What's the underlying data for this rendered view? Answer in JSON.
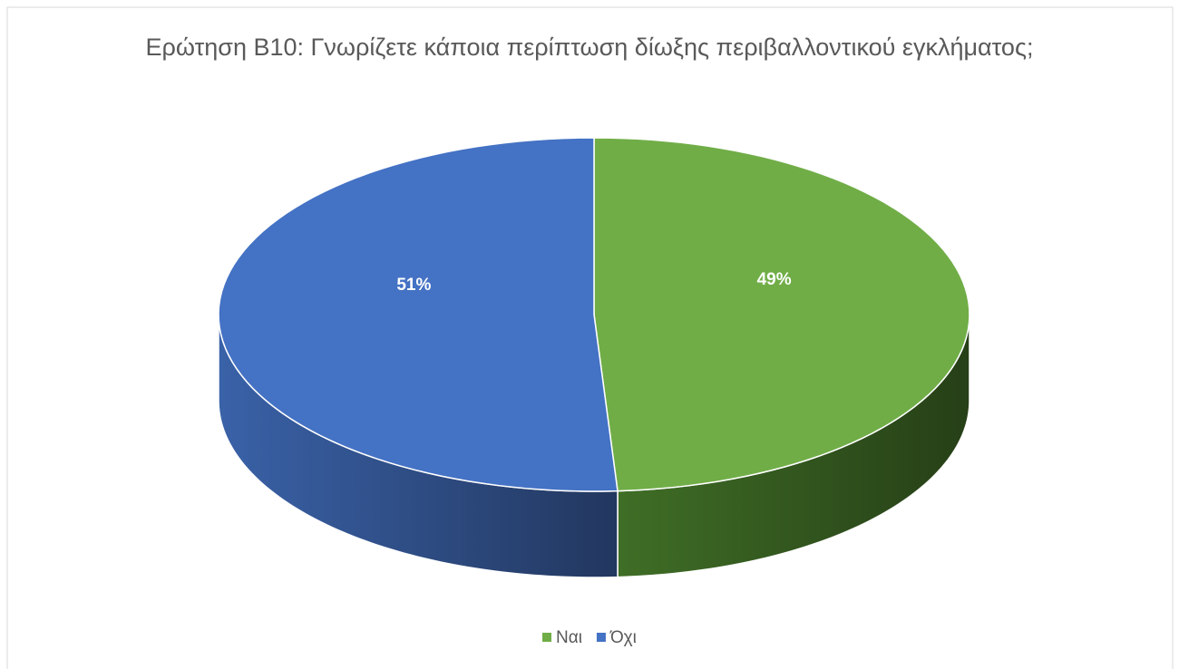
{
  "chart_data": {
    "type": "pie",
    "title": "Ερώτηση Β10: Γνωρίζετε κάποια περίπτωση δίωξης περιβαλλοντικού εγκλήματος;",
    "categories": [
      "Ναι",
      "Όχι"
    ],
    "values": [
      49,
      51
    ],
    "value_labels": [
      "49%",
      "51%"
    ],
    "colors": [
      "#70ad47",
      "#4472c4"
    ],
    "legend": "bottom",
    "three_d": true
  }
}
